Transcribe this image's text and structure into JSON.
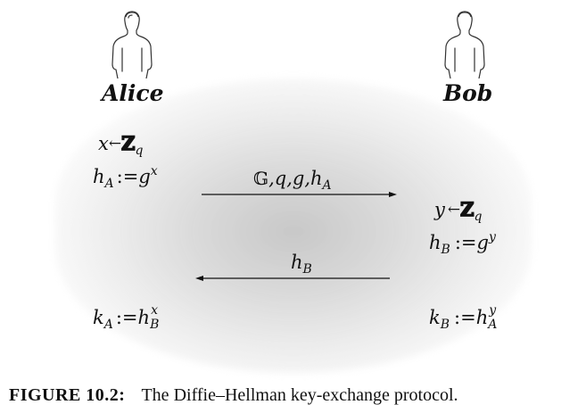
{
  "figure": {
    "label": "FIGURE 10.2",
    "colon": ":",
    "caption": "The Diffie–Hellman key-exchange protocol."
  },
  "parties": {
    "alice": {
      "name": "Alice",
      "icon": "person-silhouette-icon"
    },
    "bob": {
      "name": "Bob",
      "icon": "person-silhouette-icon"
    }
  },
  "alice_steps": {
    "choose_x": {
      "var": "x",
      "arrow": "←",
      "set": "ℤ",
      "set_sub": "q"
    },
    "compute_h": {
      "lhs": "h",
      "lhs_sub": "A",
      "op": ":=",
      "base": "g",
      "exp": "x"
    },
    "key": {
      "lhs": "k",
      "lhs_sub": "A",
      "op": ":=",
      "base": "h",
      "base_sub": "B",
      "exp": "x"
    }
  },
  "bob_steps": {
    "choose_y": {
      "var": "y",
      "arrow": "←",
      "set": "ℤ",
      "set_sub": "q"
    },
    "compute_h": {
      "lhs": "h",
      "lhs_sub": "B",
      "op": ":=",
      "base": "g",
      "exp": "y"
    },
    "key": {
      "lhs": "k",
      "lhs_sub": "B",
      "op": ":=",
      "base": "h",
      "base_sub": "A",
      "exp": "y"
    }
  },
  "messages": {
    "alice_to_bob": {
      "group": "𝔾",
      "rest": ",q,g,h",
      "sub": "A",
      "direction": "right"
    },
    "bob_to_alice": {
      "text": "h",
      "sub": "B",
      "direction": "left"
    }
  }
}
